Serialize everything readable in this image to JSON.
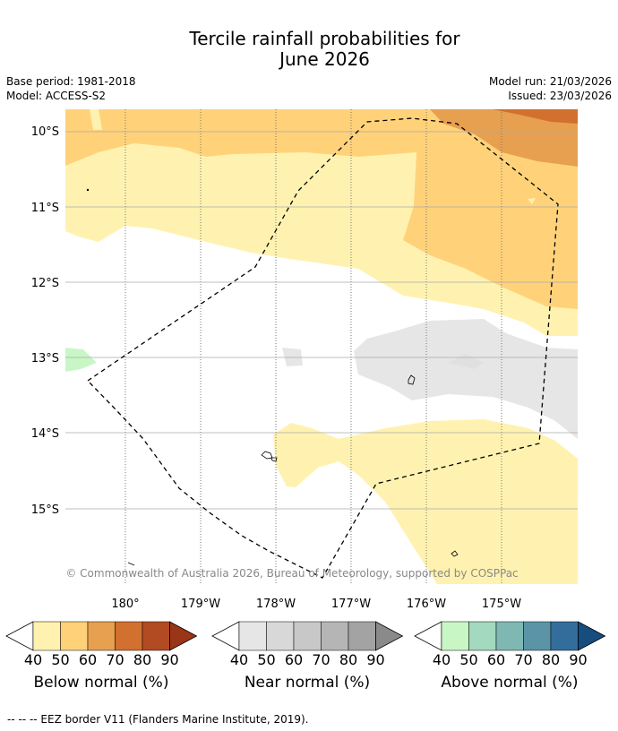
{
  "title_line1": "Tercile rainfall probabilities for",
  "title_line2": "June 2026",
  "base_period": "Base period: 1981-2018",
  "model": "Model: ACCESS-S2",
  "model_run": "Model run: 21/03/2026",
  "issued": "Issued: 23/03/2026",
  "latitude_labels": [
    "10°S",
    "11°S",
    "12°S",
    "13°S",
    "14°S",
    "15°S"
  ],
  "longitude_labels": [
    "180°",
    "179°W",
    "178°W",
    "177°W",
    "176°W",
    "175°W"
  ],
  "attribution": "© Commonwealth of Australia 2026, Bureau of Meteorology, supported by COSPPac",
  "legend_ticks": [
    "40",
    "50",
    "60",
    "70",
    "80",
    "90"
  ],
  "colorbars": [
    {
      "label": "Below normal (%)",
      "colors": [
        "#fff2b0",
        "#ffd27a",
        "#e6a050",
        "#d2702f",
        "#b24a22",
        "#9a3518"
      ]
    },
    {
      "label": "Near normal (%)",
      "colors": [
        "#e6e6e6",
        "#d8d8d8",
        "#c8c8c8",
        "#b5b5b5",
        "#a3a3a3",
        "#8a8a8a"
      ]
    },
    {
      "label": "Above normal (%)",
      "colors": [
        "#c8f7c5",
        "#a3d9be",
        "#7fb8b3",
        "#5a94a6",
        "#336d9c",
        "#174c7e"
      ]
    }
  ],
  "footnote": "--  --  -- EEZ border V11 (Flanders Marine Institute, 2019)."
}
